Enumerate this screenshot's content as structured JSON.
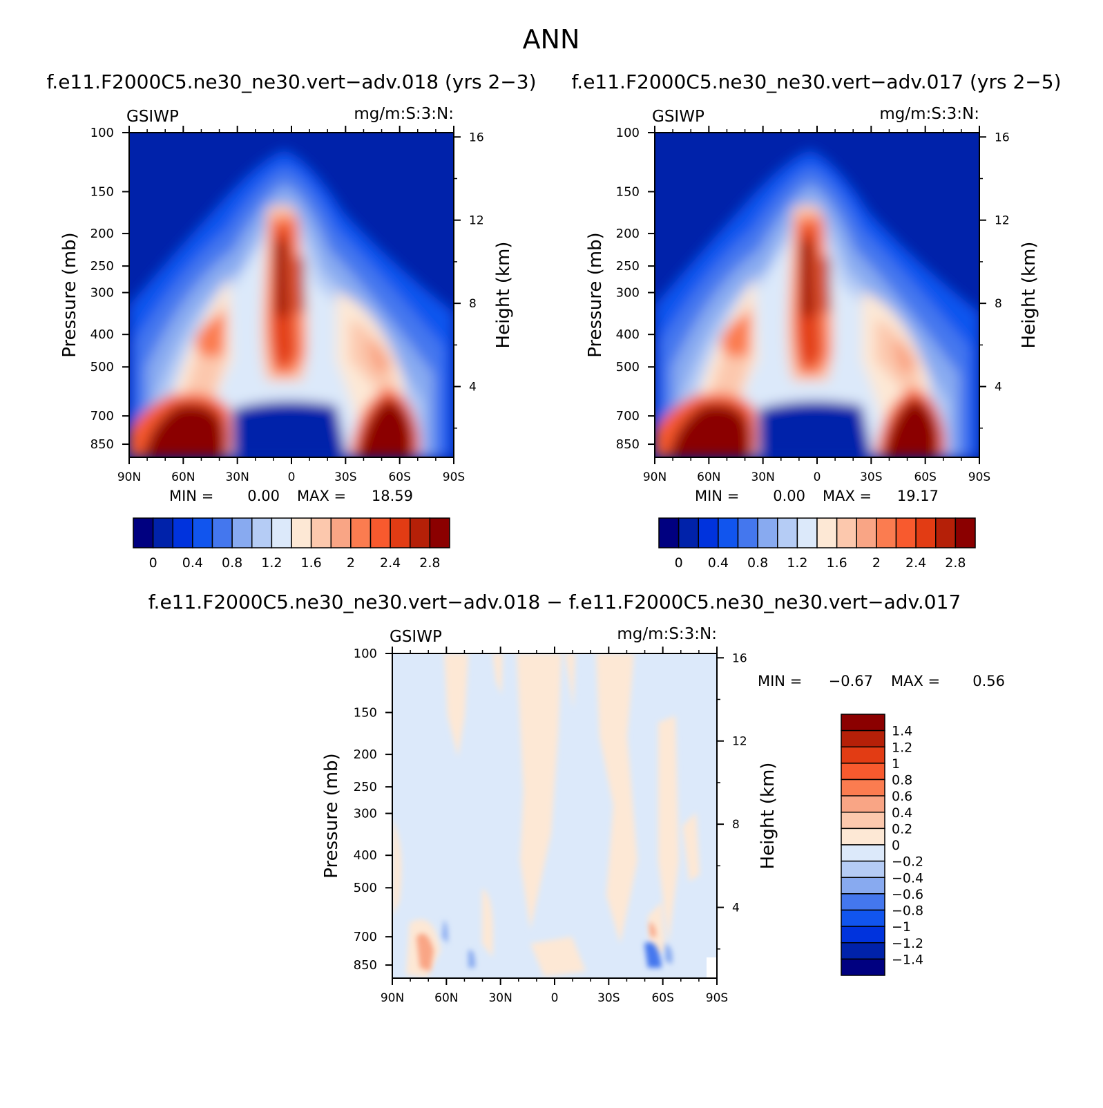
{
  "title": "ANN",
  "chart_data": [
    {
      "type": "heatmap",
      "title": "f.e11.F2000C5.ne30_ne30.vert-adv.018 (yrs 2-3)",
      "variable": "GSIWP",
      "units": "mg/m:S:3:N:",
      "ylabel": "Pressure (mb)",
      "y2label": "Height (km)",
      "x_ticks": [
        "90N",
        "60N",
        "30N",
        "0",
        "30S",
        "60S",
        "90S"
      ],
      "y_ticks": [
        "100",
        "150",
        "200",
        "250",
        "300",
        "400",
        "500",
        "700",
        "850"
      ],
      "y2_ticks": [
        "16",
        "12",
        "8",
        "4"
      ],
      "min_label": "MIN =",
      "min_value": "0.00",
      "max_label": "MAX =",
      "max_value": "18.59",
      "colorbar_labels": [
        "0",
        "0.4",
        "0.8",
        "1.2",
        "1.6",
        "2",
        "2.4",
        "2.8"
      ],
      "colorbar_colors": [
        "#000080",
        "#0022aa",
        "#0033dd",
        "#1155ee",
        "#4477ee",
        "#88aaf0",
        "#b5ccf5",
        "#dce9fa",
        "#fde8d5",
        "#fcc8ad",
        "#f9a585",
        "#fb7c50",
        "#f85a2e",
        "#e23c14",
        "#b52008",
        "#8b0000"
      ]
    },
    {
      "type": "heatmap",
      "title": "f.e11.F2000C5.ne30_ne30.vert-adv.017 (yrs 2-5)",
      "variable": "GSIWP",
      "units": "mg/m:S:3:N:",
      "ylabel": "Pressure (mb)",
      "y2label": "Height (km)",
      "x_ticks": [
        "90N",
        "60N",
        "30N",
        "0",
        "30S",
        "60S",
        "90S"
      ],
      "y_ticks": [
        "100",
        "150",
        "200",
        "250",
        "300",
        "400",
        "500",
        "700",
        "850"
      ],
      "y2_ticks": [
        "16",
        "12",
        "8",
        "4"
      ],
      "min_label": "MIN =",
      "min_value": "0.00",
      "max_label": "MAX =",
      "max_value": "19.17",
      "colorbar_labels": [
        "0",
        "0.4",
        "0.8",
        "1.2",
        "1.6",
        "2",
        "2.4",
        "2.8"
      ],
      "colorbar_colors": [
        "#000080",
        "#0022aa",
        "#0033dd",
        "#1155ee",
        "#4477ee",
        "#88aaf0",
        "#b5ccf5",
        "#dce9fa",
        "#fde8d5",
        "#fcc8ad",
        "#f9a585",
        "#fb7c50",
        "#f85a2e",
        "#e23c14",
        "#b52008",
        "#8b0000"
      ]
    },
    {
      "type": "heatmap",
      "title": "f.e11.F2000C5.ne30_ne30.vert-adv.018 - f.e11.F2000C5.ne30_ne30.vert-adv.017",
      "variable": "GSIWP",
      "units": "mg/m:S:3:N:",
      "ylabel": "Pressure (mb)",
      "y2label": "Height (km)",
      "x_ticks": [
        "90N",
        "60N",
        "30N",
        "0",
        "30S",
        "60S",
        "90S"
      ],
      "y_ticks": [
        "100",
        "150",
        "200",
        "250",
        "300",
        "400",
        "500",
        "700",
        "850"
      ],
      "y2_ticks": [
        "16",
        "12",
        "8",
        "4"
      ],
      "min_label": "MIN =",
      "min_value": "-0.67",
      "max_label": "MAX =",
      "max_value": "0.56",
      "colorbar_labels": [
        "1.4",
        "1.2",
        "1",
        "0.8",
        "0.6",
        "0.4",
        "0.2",
        "0",
        "-0.2",
        "-0.4",
        "-0.6",
        "-0.8",
        "-1",
        "-1.2",
        "-1.4"
      ],
      "colorbar_colors": [
        "#8b0000",
        "#b52008",
        "#e23c14",
        "#f85a2e",
        "#fb7c50",
        "#f9a585",
        "#fcc8ad",
        "#fde8d5",
        "#dce9fa",
        "#b5ccf5",
        "#88aaf0",
        "#4477ee",
        "#1155ee",
        "#0033dd",
        "#0022aa",
        "#000080"
      ]
    }
  ]
}
